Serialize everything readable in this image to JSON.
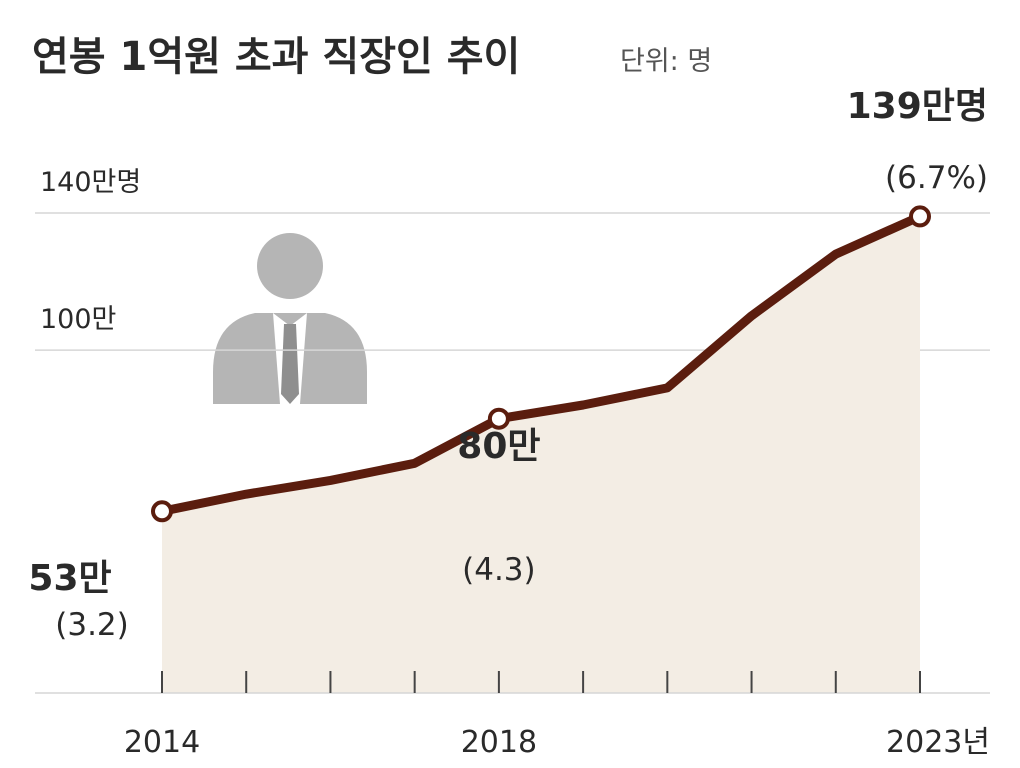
{
  "chart_data": {
    "type": "area",
    "title": "연봉 1억원 초과 직장인 추이",
    "unit_note": "단위: 명",
    "x": [
      2014,
      2015,
      2016,
      2017,
      2018,
      2019,
      2020,
      2021,
      2022,
      2023
    ],
    "x_tick_labels": [
      {
        "x": 2014,
        "label": "2014"
      },
      {
        "x": 2018,
        "label": "2018"
      },
      {
        "x": 2023,
        "label": "2023년"
      }
    ],
    "y_tick_labels": [
      {
        "y": 100,
        "label": "100만"
      },
      {
        "y": 140,
        "label": "140만명"
      }
    ],
    "ylim": [
      0,
      140
    ],
    "xlim": [
      2014,
      2023
    ],
    "series": [
      {
        "values": [
          53,
          58,
          62,
          67,
          80,
          84,
          89,
          110,
          128,
          139
        ],
        "color": "#5b1d0e",
        "fill": "#f3ede4"
      }
    ],
    "annotations": [
      {
        "x": 2014,
        "y": 53,
        "value_label": "53만",
        "pct_label": "(3.2)"
      },
      {
        "x": 2018,
        "y": 80,
        "value_label": "80만",
        "pct_label": "(4.3)"
      },
      {
        "x": 2023,
        "y": 139,
        "value_label": "139만명",
        "pct_label": "(6.7%)"
      }
    ],
    "grid": true,
    "legend": "none",
    "icon": "person-silhouette-icon"
  },
  "colors": {
    "line": "#5b1d0e",
    "area": "#f3ede4",
    "grid": "#d6d6d6",
    "text": "#2a2a2a",
    "icon": "#b5b5b5"
  }
}
